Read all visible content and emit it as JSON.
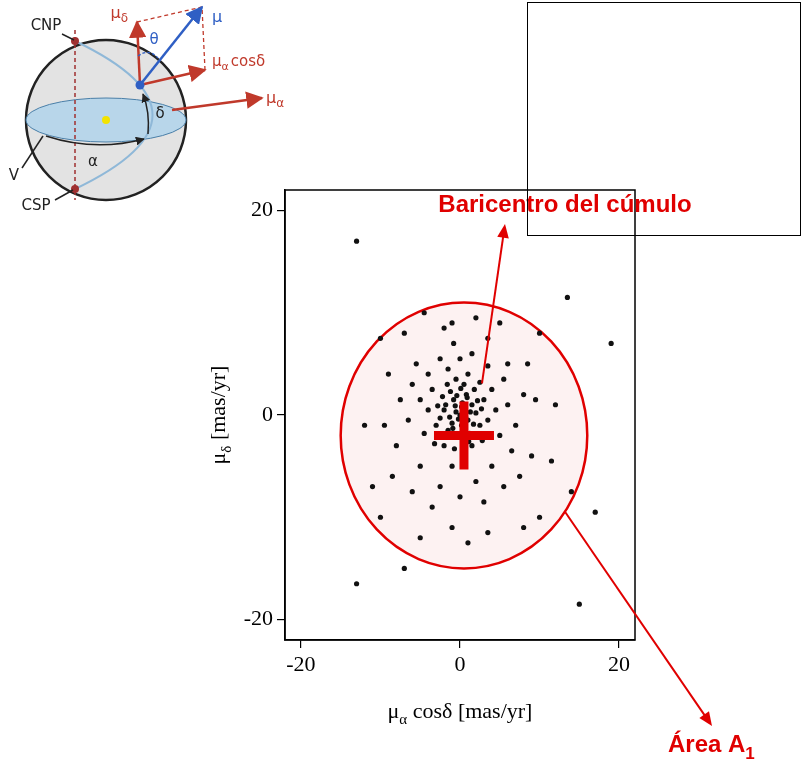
{
  "chart_data": {
    "type": "scatter",
    "x": [
      -13,
      13.5,
      19,
      -13,
      -7,
      14,
      17,
      15,
      0,
      0.5,
      -0.5,
      1,
      -1,
      0.3,
      -0.8,
      1.5,
      2,
      -2,
      -1.5,
      1.2,
      0.2,
      -0.3,
      2.5,
      -2.5,
      0.8,
      -1.2,
      1.8,
      -2.2,
      3,
      -3,
      0.5,
      -0.5,
      1,
      0,
      -1.5,
      2.5,
      -3.5,
      3.5,
      -4,
      4,
      -2,
      1.5,
      0.6,
      -1,
      2.8,
      -3.2,
      4.5,
      -4.5,
      5,
      -5,
      5.5,
      -6,
      6,
      -6.5,
      3.5,
      -2.5,
      1.5,
      -0.8,
      2,
      -1,
      6,
      -5.5,
      -4,
      7,
      -7.5,
      8,
      -8,
      6.5,
      -5,
      4,
      2,
      -2.5,
      0,
      3,
      -3.5,
      5.5,
      -6,
      7.5,
      -8.5,
      9,
      -9.5,
      9.5,
      -10,
      10,
      8,
      -5,
      1,
      -1,
      3.5,
      -11,
      11.5,
      -12,
      12,
      -9,
      8.5,
      -10,
      10,
      -7,
      5,
      -4.5,
      3.5,
      -2,
      0.2,
      -0.2,
      0.7,
      -0.6,
      1.3,
      -1.3,
      0.4,
      -0.9,
      1.7,
      -1.8,
      0.9,
      -0.4,
      2.2,
      -2.3,
      2.7,
      -2.8,
      0.1,
      -1.6,
      1.1,
      -0.7
    ],
    "values": [
      17,
      11.5,
      7,
      -16.5,
      -15,
      -7.5,
      -9.5,
      -18.5,
      0,
      0.5,
      0.3,
      -0.5,
      -0.8,
      1.2,
      1.5,
      1,
      0.2,
      0.5,
      -1.5,
      -1.8,
      -1,
      -2.2,
      -1,
      -0.3,
      2,
      2.3,
      2.5,
      1.8,
      1.5,
      -1,
      3,
      3.5,
      4,
      5.5,
      4.5,
      3.2,
      2.5,
      -0.5,
      0.5,
      2.5,
      -3,
      -3,
      -4.5,
      -5,
      -2.5,
      -2.8,
      0.5,
      -1.8,
      -2,
      1.5,
      3.5,
      3,
      1,
      -0.5,
      4.8,
      5.5,
      6,
      7,
      9.5,
      9,
      5,
      5,
      4,
      -1,
      1.5,
      2,
      -3,
      -3.5,
      -5,
      -5,
      -6.5,
      -7,
      -8,
      -8.5,
      -9,
      -7,
      -7.5,
      -6,
      -6,
      -4,
      -1,
      1.5,
      -10,
      -10,
      -11,
      -12,
      -12.5,
      -11,
      -11.5,
      -7,
      -4.5,
      -1,
      1,
      4,
      5,
      7.5,
      8,
      8,
      9,
      10,
      7.5,
      8.5,
      0.8,
      -0.4,
      -0.2,
      0.9,
      0.3,
      -0.2,
      -1.6,
      -1.3,
      -0.9,
      1,
      1.7,
      1.9,
      1.4,
      -1.9,
      0.6,
      0.9,
      2.6,
      3,
      -2.6,
      -3.3
    ],
    "color": "#111111",
    "marker": "circle",
    "xlabel": {
      "base": "μ",
      "sub": "α",
      "rest": " cosδ [mas/yr]"
    },
    "ylabel": {
      "base": "μ",
      "sub": "δ",
      "rest": " [mas/yr]"
    },
    "xlim": [
      -22,
      22
    ],
    "ylim": [
      -22,
      22
    ],
    "xticks": [
      -20,
      0,
      20
    ],
    "yticks": [
      -20,
      0,
      20
    ],
    "grid": false,
    "annotations": [
      {
        "type": "ellipse",
        "text": "Área A",
        "subscript": "1",
        "x": 0.5,
        "y": -2,
        "rx": 15.5,
        "ry": 13,
        "color": "#e00000"
      },
      {
        "type": "cross",
        "text": "Baricentro del cúmulo",
        "x": 0.5,
        "y": -2,
        "color": "#e00000"
      }
    ]
  },
  "diagram": {
    "north_pole": "CNP",
    "south_pole": "CSP",
    "vernal_point": "V",
    "right_ascension": "α",
    "declination": "δ",
    "angle": "θ",
    "proper_motion": "μ",
    "mu_delta": {
      "base": "μ",
      "sub": "δ"
    },
    "mu_alpha_cosdelta": {
      "base": "μ",
      "sub": "α",
      "rest": "cosδ"
    },
    "mu_alpha": {
      "base": "μ",
      "sub": "α"
    }
  }
}
